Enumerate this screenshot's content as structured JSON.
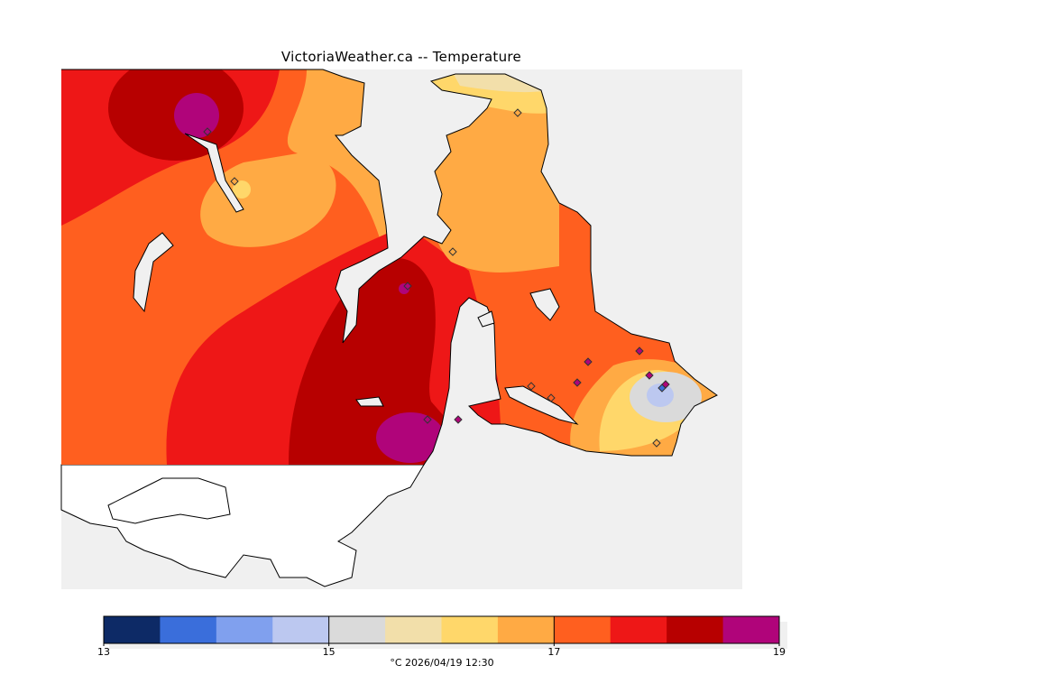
{
  "title": "VictoriaWeather.ca -- Temperature",
  "legend": {
    "min": 13,
    "max": 19,
    "step": 0.5,
    "colors": [
      "#0d2a66",
      "#3a6edb",
      "#80a0ee",
      "#bcc8f0",
      "#dadada",
      "#f2dfaa",
      "#ffd76a",
      "#ffaa44",
      "#ff5f1f",
      "#ee1717",
      "#b70000",
      "#b0047a"
    ],
    "tick_labels": [
      "13",
      "15",
      "17",
      "19"
    ],
    "units_text": "°C  2026/04/19 12:30"
  },
  "colors": {
    "water": "#f0f0f0",
    "land_outside": "#ffffff",
    "coast": "#000000"
  }
}
